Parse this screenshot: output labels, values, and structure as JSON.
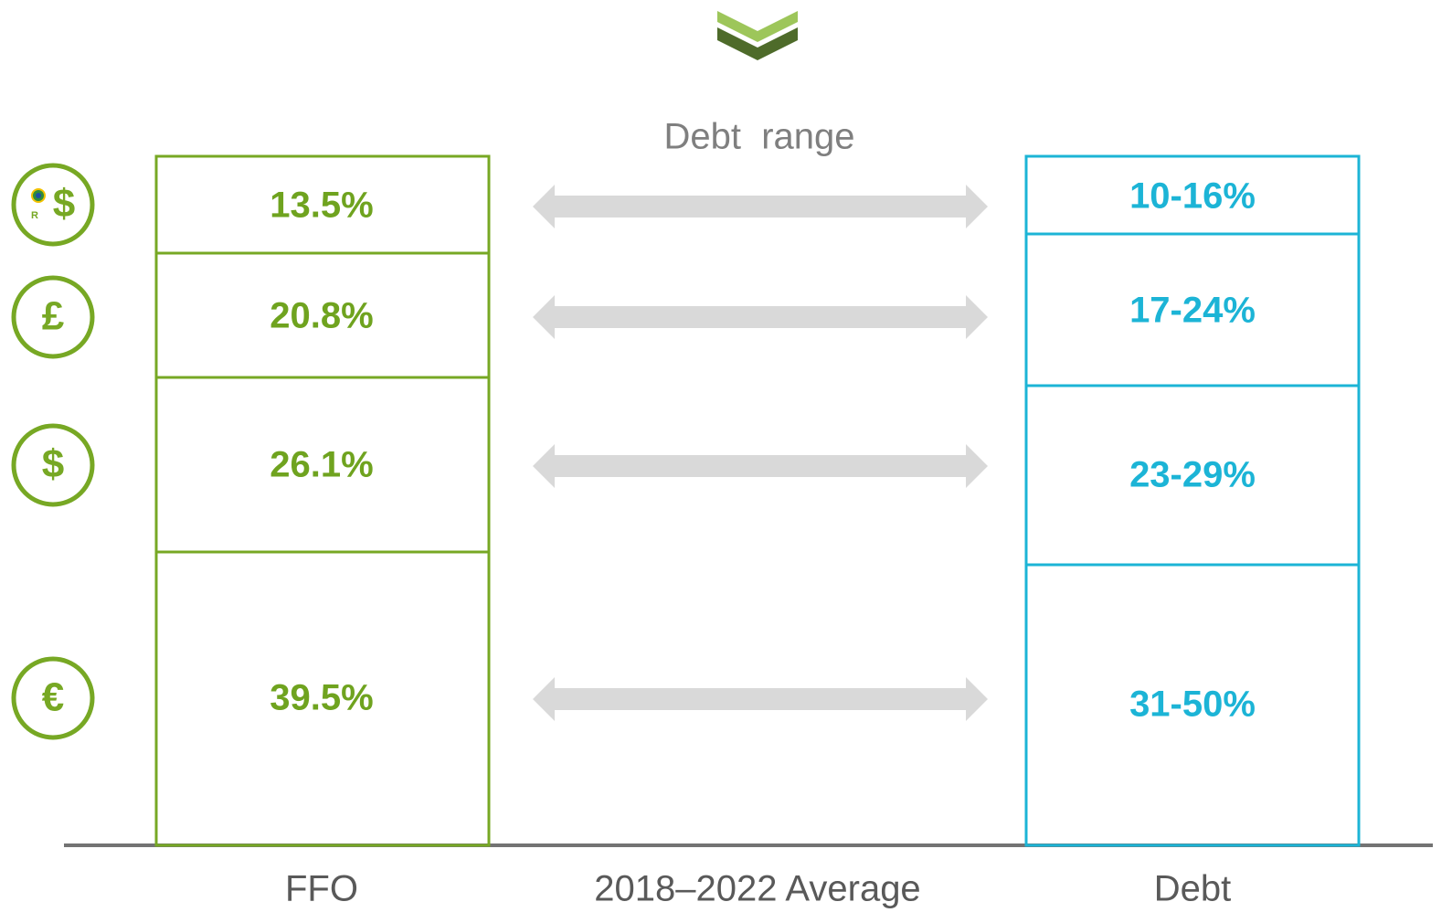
{
  "header": {
    "label": "Debt  range"
  },
  "ffo": {
    "segments": [
      "13.5%",
      "20.8%",
      "26.1%",
      "39.5%"
    ]
  },
  "debt": {
    "segments": [
      "10-16%",
      "17-24%",
      "23-29%",
      "31-50%"
    ]
  },
  "icons": [
    {
      "symbol": "$",
      "badge": "R"
    },
    {
      "symbol": "£"
    },
    {
      "symbol": "$"
    },
    {
      "symbol": "€"
    }
  ],
  "footer": {
    "left": "FFO",
    "center": "2018–2022 Average",
    "right": "Debt"
  }
}
